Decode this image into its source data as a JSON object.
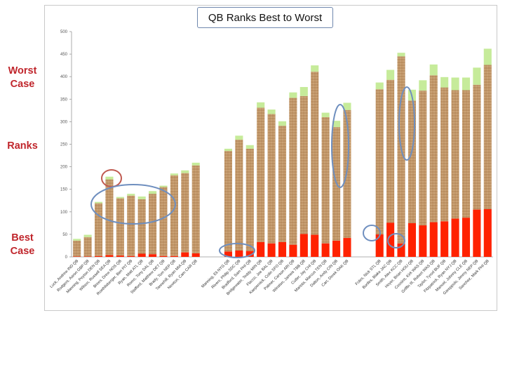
{
  "page": {
    "side_labels": {
      "worst": "Worst\nCase",
      "ranks": "Ranks",
      "best": "Best\nCase"
    }
  },
  "chart_data": {
    "type": "bar",
    "stacked": true,
    "title": "QB Ranks Best to Worst",
    "ylim": [
      0,
      500
    ],
    "yticks": [
      0,
      50,
      100,
      150,
      200,
      250,
      300,
      350,
      400,
      450,
      500
    ],
    "colors": {
      "best": "#ff2200",
      "range": "#c49a6c",
      "worst": "#c6eb9a"
    },
    "categories": [
      "Luck, Andrew IND QB",
      "Rodgers, Aaron GBP QB",
      "Manning, Peyton DEN QB",
      "Wilson, Russell SEA QB",
      "Brees, Drew NOS QB",
      "Roethlisberger, Ben PIT QB",
      "Ryan, Matt ATL QB",
      "Romo, Tony DAL QB",
      "Stafford, Matthew DET QB",
      "Brady, Tom NEP QB",
      "Tannehill, Ryan MIA QB",
      "Newton, Cam CAR QB",
      "",
      "",
      "Manning, Eli NYG QB",
      "Rivers, Philip SDC QB",
      "Bradford, Sam PHI QB",
      "Bridgewater, Teddy MIN QB",
      "Flacco, Joe BAL QB",
      "Kaepernick, Colin SFO QB",
      "Palmer, Carson ARI QB",
      "Winston, Jameis TBB QB",
      "Cutler, Jay CHI QB",
      "Mariota, Marcus TEN QB",
      "Dalton, Andy CIN QB",
      "Carr, Derek OAK QB",
      "",
      "",
      "Foles, Nick STL QB",
      "Bortles, Blake JAC QB",
      "Smith, Alex KCC QB",
      "Hoyer, Brian HOU QB",
      "Cousins, Kirk WAS QB",
      "Griffin III, Robert WAS QB",
      "Taylor, Tyrod BUF QB",
      "Fitzpatrick, Ryan NYJ QB",
      "Manuel, Johnny CLE QB",
      "Garoppolo, Jimmy NEP QB",
      "Sanchez, Mark PHI QB"
    ],
    "series": [
      {
        "key": "best",
        "values": [
          1,
          1,
          2,
          4,
          3,
          2,
          7,
          6,
          2,
          2,
          10,
          8,
          null,
          null,
          12,
          14,
          13,
          33,
          30,
          33,
          27,
          51,
          49,
          30,
          36,
          42,
          null,
          null,
          50,
          76,
          30,
          75,
          70,
          77,
          79,
          85,
          87,
          105,
          106
        ]
      },
      {
        "key": "range",
        "values": [
          35,
          43,
          117,
          168,
          127,
          134,
          121,
          134,
          153,
          179,
          176,
          195,
          null,
          null,
          223,
          246,
          227,
          298,
          287,
          258,
          326,
          306,
          362,
          280,
          252,
          284,
          null,
          null,
          322,
          317,
          415,
          272,
          299,
          326,
          297,
          285,
          283,
          277,
          320
        ]
      },
      {
        "key": "worst",
        "values": [
          4,
          5,
          3,
          6,
          3,
          4,
          6,
          6,
          3,
          4,
          6,
          6,
          null,
          null,
          5,
          9,
          8,
          12,
          10,
          10,
          12,
          20,
          14,
          10,
          14,
          16,
          null,
          null,
          15,
          22,
          8,
          24,
          23,
          24,
          23,
          28,
          28,
          38,
          36
        ]
      }
    ],
    "annotations": [
      "circle",
      "ellipse",
      "ellipse",
      "ellipse",
      "ellipse",
      "ellipse",
      "ellipse"
    ]
  }
}
